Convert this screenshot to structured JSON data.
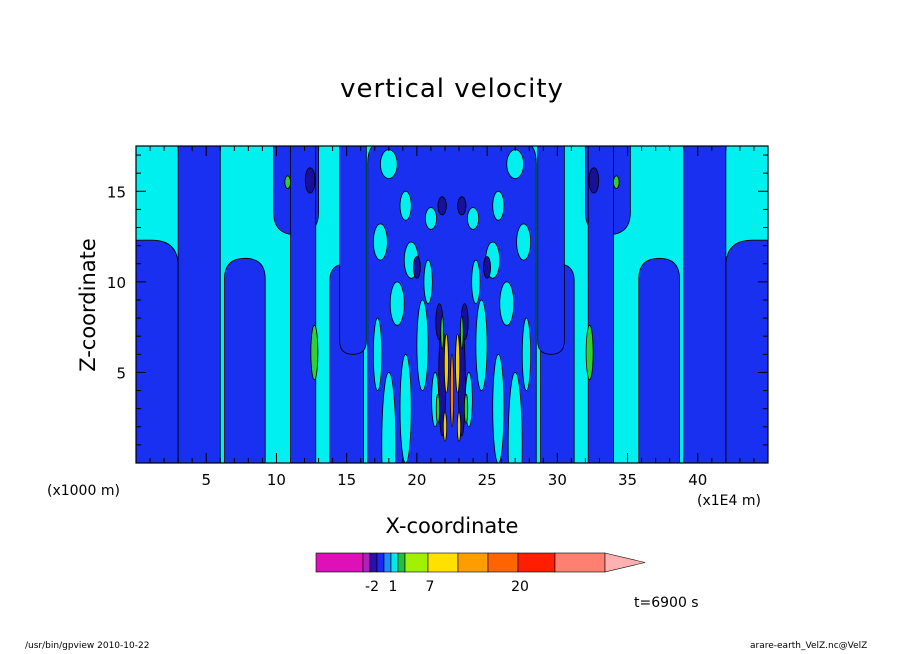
{
  "chart_data": {
    "type": "heatmap",
    "title": "vertical velocity",
    "xlabel": "X-coordinate",
    "ylabel": "Z-coordinate",
    "x_unit_left": "(x1000 m)",
    "x_unit_right": "(x1E4 m)",
    "x_ticks": [
      "5",
      "10",
      "15",
      "20",
      "25",
      "30",
      "35",
      "40"
    ],
    "y_ticks": [
      "5",
      "10",
      "15"
    ],
    "xlim": [
      0,
      45
    ],
    "ylim": [
      0,
      17.5
    ],
    "colorbar_labels": [
      {
        "label": "-2",
        "index": 2
      },
      {
        "label": "1",
        "index": 5
      },
      {
        "label": "7",
        "index": 8
      },
      {
        "label": "20",
        "index": 11
      }
    ],
    "colorbar_colors": [
      "#e010b8",
      "#b020c0",
      "#2a0fb0",
      "#1a28f0",
      "#1a8cff",
      "#00e8e8",
      "#20c040",
      "#a0f000",
      "#ffe000",
      "#ff9c00",
      "#ff6400",
      "#ff1e00",
      "#ff8070",
      "#ffb0b0"
    ],
    "field_colors": {
      "light": "#00f0f0",
      "mid": "#1a30f0",
      "dark": "#18109a",
      "green": "#30d030",
      "yellow": "#f0d000",
      "orange": "#ff8000"
    },
    "time_label": "t=6900 s",
    "footer_left": "/usr/bin/gpview   2010-10-22",
    "footer_right": "arare-earth_VelZ.nc@VelZ"
  }
}
